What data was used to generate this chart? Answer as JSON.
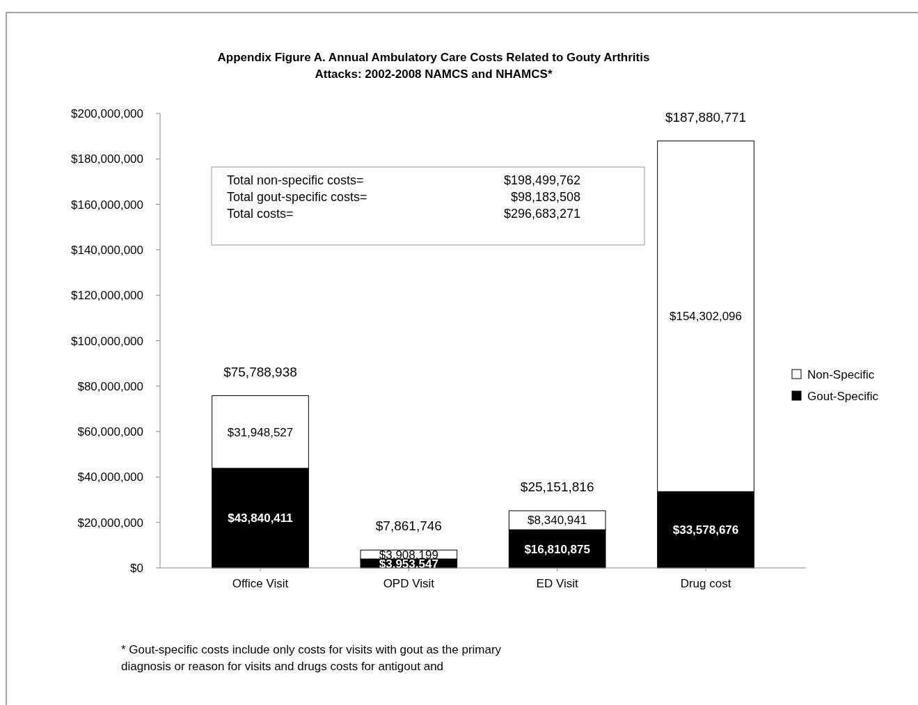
{
  "chart_data": {
    "type": "bar",
    "stacked": true,
    "title": "Appendix Figure A. Annual Ambulatory Care Costs Related to Gouty Arthritis\nAttacks: 2002-2008 NAMCS and NHAMCS*",
    "categories": [
      "Office Visit",
      "OPD Visit",
      "ED Visit",
      "Drug cost"
    ],
    "series": [
      {
        "name": "Gout-Specific",
        "color": "#000000",
        "values": [
          43840411,
          3953547,
          16810875,
          33578676
        ],
        "value_labels": [
          "$43,840,411",
          "$3,953,547",
          "$16,810,875",
          "$33,578,676"
        ]
      },
      {
        "name": "Non-Specific",
        "color": "#ffffff",
        "values": [
          31948527,
          3908199,
          8340941,
          154302096
        ],
        "value_labels": [
          "$31,948,527",
          "$3,908,199",
          "$8,340,941",
          "$154,302,096"
        ]
      }
    ],
    "totals": [
      "$75,788,938",
      "$7,861,746",
      "$25,151,816",
      "$187,880,771"
    ],
    "ylim": [
      0,
      200000000
    ],
    "yticks": [
      {
        "value": 0,
        "label": "$0"
      },
      {
        "value": 20000000,
        "label": "$20,000,000"
      },
      {
        "value": 40000000,
        "label": "$40,000,000"
      },
      {
        "value": 60000000,
        "label": "$60,000,000"
      },
      {
        "value": 80000000,
        "label": "$80,000,000"
      },
      {
        "value": 100000000,
        "label": "$100,000,000"
      },
      {
        "value": 120000000,
        "label": "$120,000,000"
      },
      {
        "value": 140000000,
        "label": "$140,000,000"
      },
      {
        "value": 160000000,
        "label": "$160,000,000"
      },
      {
        "value": 180000000,
        "label": "$180,000,000"
      },
      {
        "value": 200000000,
        "label": "$200,000,000"
      }
    ],
    "grid": false,
    "legend": "right",
    "annotations": [
      "Total non-specific costs=\t$198,499,762",
      "Total gout-specific costs=\t$98,183,508",
      "Total costs=\t$296,683,271",
      "* Gout-specific costs include only costs for visits with gout as the primary\ndiagnosis or reason for visits and drugs costs for antigout and"
    ]
  }
}
